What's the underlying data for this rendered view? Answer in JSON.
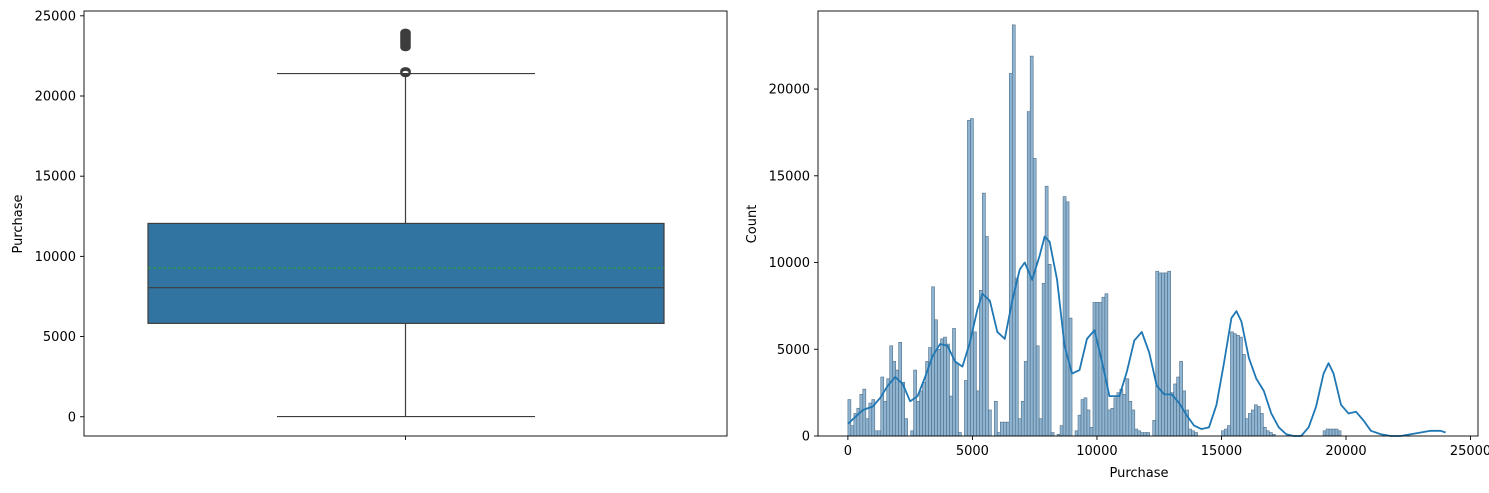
{
  "chart_data": [
    {
      "type": "box",
      "ylabel": "Purchase",
      "xlabel": "",
      "ylim": [
        -1200,
        25300
      ],
      "yticks": [
        0,
        5000,
        10000,
        15000,
        20000,
        25000
      ],
      "yticklabels": [
        "0",
        "5000",
        "10000",
        "15000",
        "20000",
        "25000"
      ],
      "box": {
        "whisker_low": 12,
        "q1": 5823,
        "median": 8047,
        "mean": 9264,
        "q3": 12054,
        "whisker_high": 21400
      },
      "outliers": [
        21410,
        21450,
        21480,
        21520,
        21560,
        23030,
        23080,
        23140,
        23190,
        23240,
        23290,
        23340,
        23390,
        23440,
        23490,
        23540,
        23590,
        23640,
        23690,
        23740,
        23790,
        23840,
        23890,
        23940,
        23961
      ],
      "colors": {
        "box": "#3274a1",
        "edge": "#3d3d3d",
        "mean_line": "#2ca02c"
      }
    },
    {
      "type": "histogram",
      "xlabel": "Purchase",
      "ylabel": "Count",
      "xlim": [
        -1200,
        25300
      ],
      "ylim": [
        0,
        24500
      ],
      "xticks": [
        0,
        5000,
        10000,
        15000,
        20000,
        25000
      ],
      "xticklabels": [
        "0",
        "5000",
        "10000",
        "15000",
        "20000",
        "25000"
      ],
      "yticks": [
        0,
        5000,
        10000,
        15000,
        20000
      ],
      "yticklabels": [
        "0",
        "5000",
        "10000",
        "15000",
        "20000"
      ],
      "bin_width": 120,
      "bars": [
        [
          0,
          2100
        ],
        [
          120,
          600
        ],
        [
          240,
          1300
        ],
        [
          360,
          1600
        ],
        [
          480,
          2400
        ],
        [
          600,
          2700
        ],
        [
          720,
          1000
        ],
        [
          840,
          1900
        ],
        [
          960,
          2100
        ],
        [
          1080,
          300
        ],
        [
          1200,
          300
        ],
        [
          1320,
          3400
        ],
        [
          1440,
          2000
        ],
        [
          1560,
          3300
        ],
        [
          1680,
          5200
        ],
        [
          1800,
          4300
        ],
        [
          1920,
          3800
        ],
        [
          2040,
          5400
        ],
        [
          2160,
          3100
        ],
        [
          2280,
          1000
        ],
        [
          2400,
          0
        ],
        [
          2520,
          300
        ],
        [
          2640,
          3800
        ],
        [
          2760,
          2000
        ],
        [
          2880,
          2600
        ],
        [
          3000,
          3100
        ],
        [
          3120,
          4300
        ],
        [
          3240,
          5100
        ],
        [
          3360,
          8600
        ],
        [
          3480,
          6700
        ],
        [
          3600,
          5000
        ],
        [
          3720,
          5600
        ],
        [
          3840,
          5700
        ],
        [
          3960,
          5300
        ],
        [
          4080,
          2300
        ],
        [
          4200,
          6200
        ],
        [
          4320,
          4200
        ],
        [
          4440,
          200
        ],
        [
          4560,
          0
        ],
        [
          4680,
          3200
        ],
        [
          4800,
          18200
        ],
        [
          4920,
          18300
        ],
        [
          5040,
          6000
        ],
        [
          5160,
          2600
        ],
        [
          5280,
          8400
        ],
        [
          5400,
          14000
        ],
        [
          5520,
          11500
        ],
        [
          5640,
          1500
        ],
        [
          5760,
          0
        ],
        [
          5880,
          2000
        ],
        [
          6000,
          200
        ],
        [
          6120,
          800
        ],
        [
          6240,
          800
        ],
        [
          6360,
          800
        ],
        [
          6480,
          20900
        ],
        [
          6600,
          23700
        ],
        [
          6720,
          9100
        ],
        [
          6840,
          1000
        ],
        [
          6960,
          2000
        ],
        [
          7080,
          4300
        ],
        [
          7200,
          18700
        ],
        [
          7320,
          21900
        ],
        [
          7440,
          16000
        ],
        [
          7560,
          5200
        ],
        [
          7680,
          1000
        ],
        [
          7800,
          8800
        ],
        [
          7920,
          14400
        ],
        [
          8040,
          9900
        ],
        [
          8160,
          200
        ],
        [
          8280,
          0
        ],
        [
          8400,
          100
        ],
        [
          8520,
          600
        ],
        [
          8640,
          13800
        ],
        [
          8760,
          13500
        ],
        [
          8880,
          6800
        ],
        [
          9000,
          0
        ],
        [
          9120,
          300
        ],
        [
          9240,
          1200
        ],
        [
          9360,
          2100
        ],
        [
          9480,
          2200
        ],
        [
          9600,
          1500
        ],
        [
          9720,
          500
        ],
        [
          9840,
          7700
        ],
        [
          9960,
          7700
        ],
        [
          10080,
          7700
        ],
        [
          10200,
          8000
        ],
        [
          10320,
          8200
        ],
        [
          10440,
          1500
        ],
        [
          10560,
          1600
        ],
        [
          10680,
          2200
        ],
        [
          10800,
          2500
        ],
        [
          10920,
          2700
        ],
        [
          11040,
          2400
        ],
        [
          11160,
          3300
        ],
        [
          11280,
          2000
        ],
        [
          11400,
          1500
        ],
        [
          11520,
          400
        ],
        [
          11640,
          300
        ],
        [
          11760,
          200
        ],
        [
          11880,
          200
        ],
        [
          12000,
          200
        ],
        [
          12120,
          0
        ],
        [
          12240,
          900
        ],
        [
          12360,
          9500
        ],
        [
          12480,
          9400
        ],
        [
          12600,
          9400
        ],
        [
          12720,
          9400
        ],
        [
          12840,
          9500
        ],
        [
          12960,
          2500
        ],
        [
          13080,
          3000
        ],
        [
          13200,
          3400
        ],
        [
          13320,
          4300
        ],
        [
          13440,
          2600
        ],
        [
          13560,
          1500
        ],
        [
          13680,
          400
        ],
        [
          13800,
          300
        ],
        [
          13920,
          200
        ],
        [
          14040,
          0
        ],
        [
          14160,
          0
        ],
        [
          14280,
          0
        ],
        [
          14400,
          0
        ],
        [
          14520,
          0
        ],
        [
          14640,
          0
        ],
        [
          14760,
          0
        ],
        [
          14880,
          0
        ],
        [
          15000,
          300
        ],
        [
          15120,
          400
        ],
        [
          15240,
          600
        ],
        [
          15360,
          6000
        ],
        [
          15480,
          5900
        ],
        [
          15600,
          5800
        ],
        [
          15720,
          5700
        ],
        [
          15840,
          4700
        ],
        [
          15960,
          1000
        ],
        [
          16080,
          1300
        ],
        [
          16200,
          1500
        ],
        [
          16320,
          1800
        ],
        [
          16440,
          1700
        ],
        [
          16560,
          1300
        ],
        [
          16680,
          500
        ],
        [
          16800,
          300
        ],
        [
          16920,
          200
        ],
        [
          17040,
          100
        ],
        [
          17160,
          0
        ],
        [
          17280,
          0
        ],
        [
          17400,
          0
        ],
        [
          17520,
          0
        ],
        [
          17640,
          0
        ],
        [
          17760,
          0
        ],
        [
          17880,
          0
        ],
        [
          18000,
          0
        ],
        [
          18120,
          0
        ],
        [
          18240,
          0
        ],
        [
          18360,
          0
        ],
        [
          18480,
          0
        ],
        [
          18600,
          0
        ],
        [
          18720,
          0
        ],
        [
          18840,
          0
        ],
        [
          18960,
          0
        ],
        [
          19080,
          300
        ],
        [
          19200,
          400
        ],
        [
          19320,
          400
        ],
        [
          19440,
          400
        ],
        [
          19560,
          400
        ],
        [
          19680,
          300
        ]
      ],
      "kde": [
        [
          0,
          700
        ],
        [
          300,
          1100
        ],
        [
          600,
          1500
        ],
        [
          1000,
          1700
        ],
        [
          1300,
          2200
        ],
        [
          1600,
          2900
        ],
        [
          1900,
          3400
        ],
        [
          2200,
          3000
        ],
        [
          2500,
          2000
        ],
        [
          2800,
          2300
        ],
        [
          3100,
          3400
        ],
        [
          3400,
          4600
        ],
        [
          3700,
          5300
        ],
        [
          4000,
          5200
        ],
        [
          4300,
          4300
        ],
        [
          4600,
          4000
        ],
        [
          4900,
          5400
        ],
        [
          5200,
          7300
        ],
        [
          5400,
          8200
        ],
        [
          5700,
          7800
        ],
        [
          6000,
          6000
        ],
        [
          6300,
          5600
        ],
        [
          6600,
          7800
        ],
        [
          6900,
          9600
        ],
        [
          7100,
          10000
        ],
        [
          7400,
          9000
        ],
        [
          7700,
          10400
        ],
        [
          7900,
          11500
        ],
        [
          8100,
          11200
        ],
        [
          8400,
          9000
        ],
        [
          8700,
          5200
        ],
        [
          9000,
          3600
        ],
        [
          9300,
          3800
        ],
        [
          9600,
          5600
        ],
        [
          9900,
          6100
        ],
        [
          10200,
          4300
        ],
        [
          10500,
          2300
        ],
        [
          10900,
          2300
        ],
        [
          11200,
          3700
        ],
        [
          11500,
          5500
        ],
        [
          11800,
          6000
        ],
        [
          12100,
          4800
        ],
        [
          12400,
          2900
        ],
        [
          12700,
          2400
        ],
        [
          13000,
          2400
        ],
        [
          13300,
          1900
        ],
        [
          13600,
          1200
        ],
        [
          13900,
          600
        ],
        [
          14200,
          400
        ],
        [
          14500,
          500
        ],
        [
          14800,
          1800
        ],
        [
          15100,
          4200
        ],
        [
          15400,
          6800
        ],
        [
          15600,
          7200
        ],
        [
          15800,
          6600
        ],
        [
          16100,
          4500
        ],
        [
          16400,
          3300
        ],
        [
          16700,
          2600
        ],
        [
          17000,
          1300
        ],
        [
          17300,
          500
        ],
        [
          17600,
          100
        ],
        [
          17900,
          0
        ],
        [
          18200,
          0
        ],
        [
          18500,
          500
        ],
        [
          18800,
          1700
        ],
        [
          19100,
          3600
        ],
        [
          19300,
          4200
        ],
        [
          19500,
          3600
        ],
        [
          19800,
          1800
        ],
        [
          20100,
          1300
        ],
        [
          20400,
          1400
        ],
        [
          20700,
          900
        ],
        [
          21000,
          300
        ],
        [
          21400,
          100
        ],
        [
          21800,
          0
        ],
        [
          22200,
          0
        ],
        [
          22600,
          100
        ],
        [
          23000,
          200
        ],
        [
          23400,
          300
        ],
        [
          23800,
          300
        ],
        [
          24000,
          200
        ]
      ],
      "colors": {
        "bar_fill": "#8fb4d1",
        "bar_edge": "#4f6f88",
        "kde": "#1f77b4"
      }
    }
  ]
}
